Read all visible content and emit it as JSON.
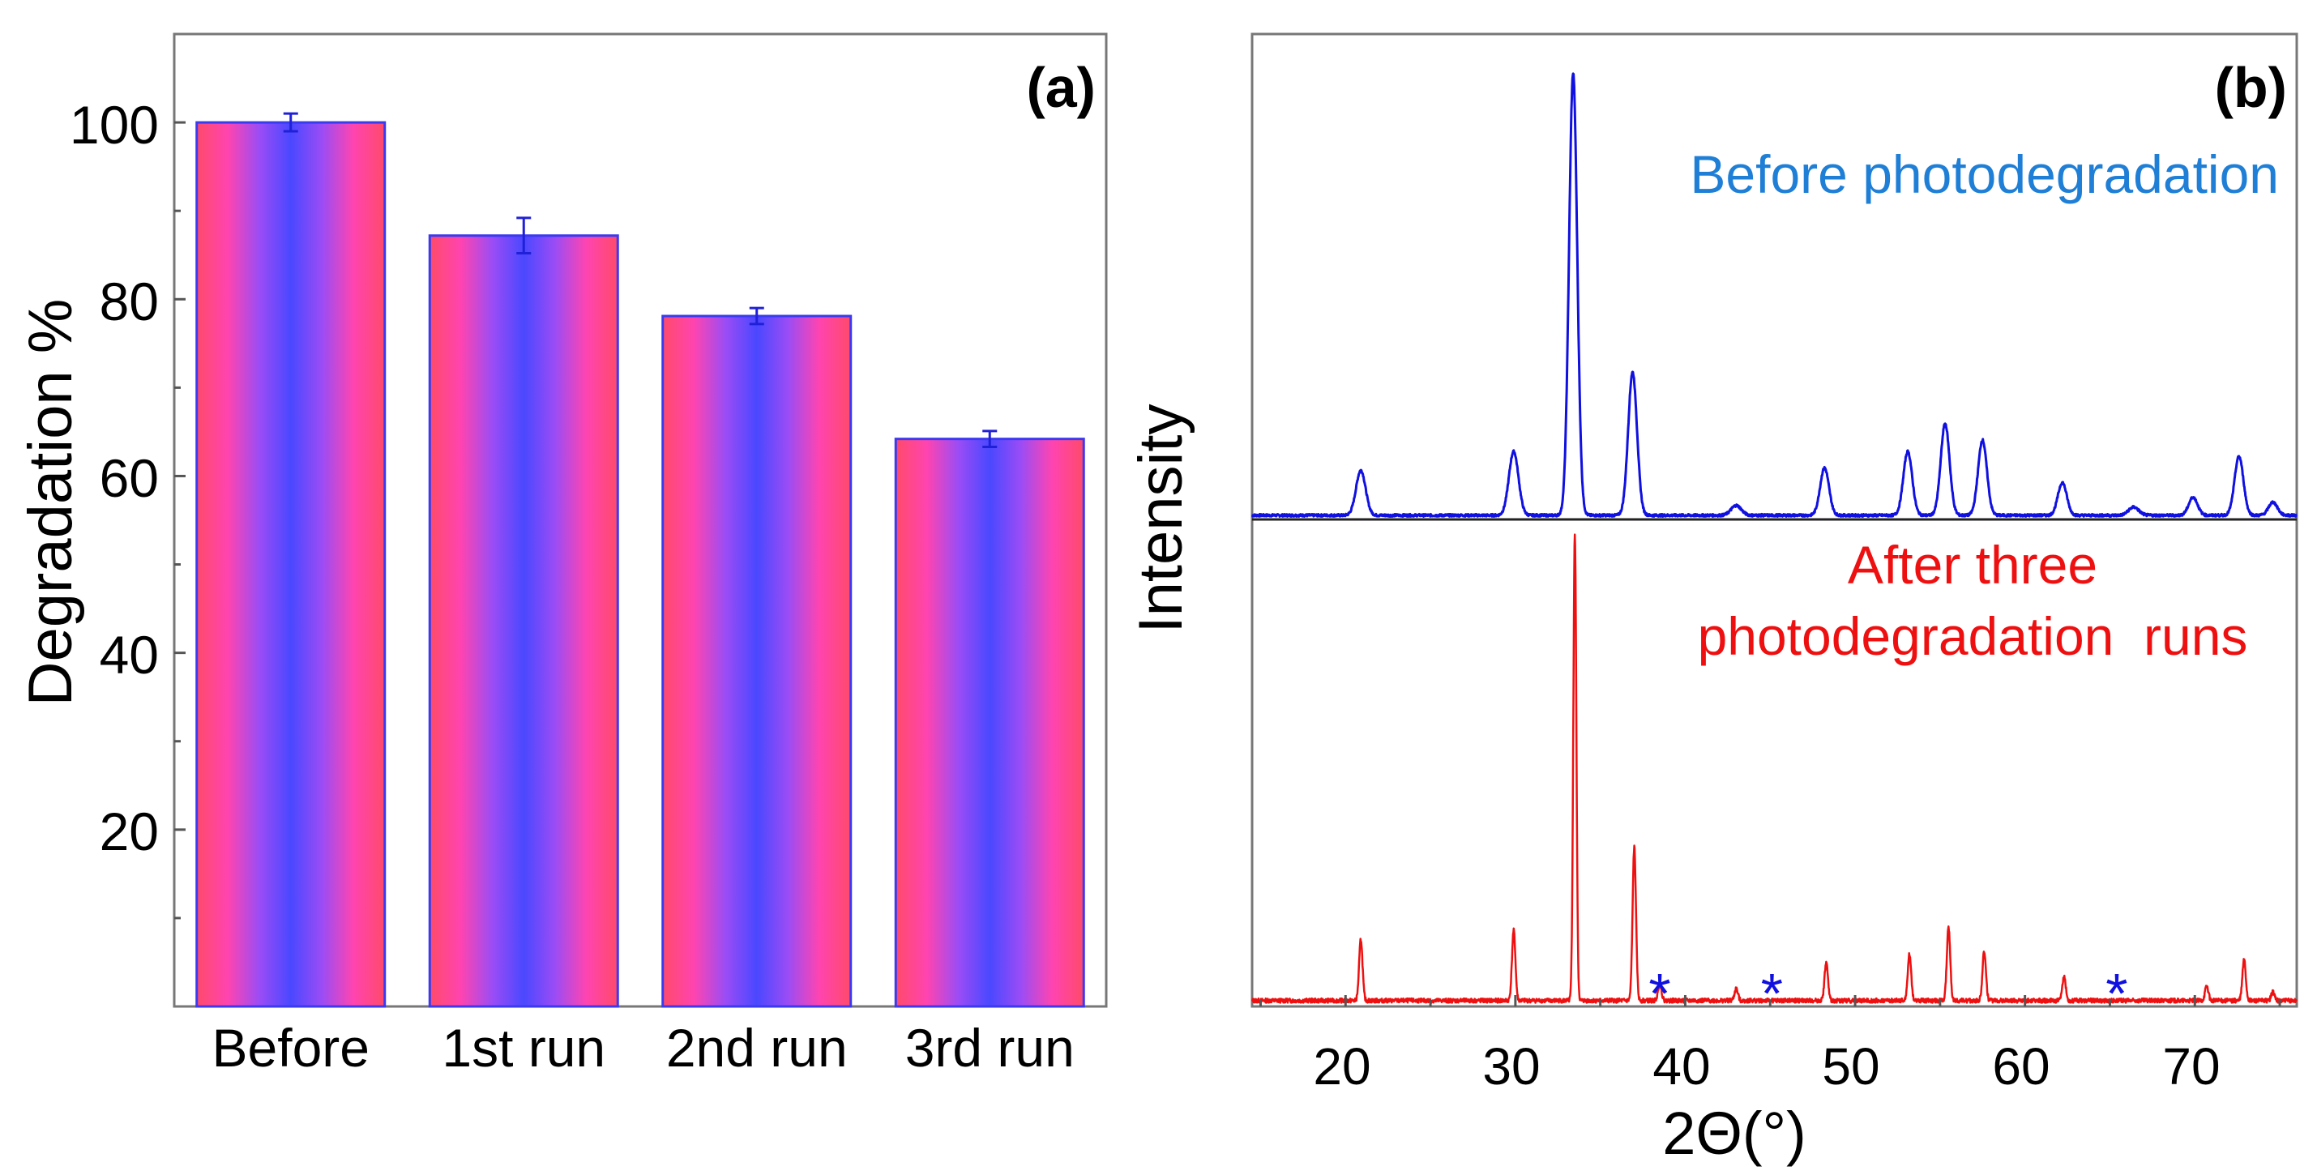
{
  "panel_a": {
    "label": "(a)",
    "ylabel": "Degradation %",
    "y_tick_labels": [
      "20",
      "40",
      "60",
      "80",
      "100"
    ]
  },
  "panel_b": {
    "label": "(b)",
    "ylabel": "Intensity",
    "xlabel": "2Θ(°)",
    "x_tick_labels": [
      "20",
      "30",
      "40",
      "50",
      "60",
      "70"
    ],
    "top_annotation": "Before photodegradation",
    "bottom_annotation_line1": "After three",
    "bottom_annotation_line2": "photodegradation  runs",
    "marker_symbol": "*"
  },
  "colors": {
    "bar_gradient": [
      "#ff4a6a",
      "#ff44b0",
      "#9b4cf5",
      "#4a48ff",
      "#9b4cf5",
      "#ff44b0",
      "#ff4a6a"
    ],
    "bar_edge": "#3a3af0",
    "error_bar": "#2020d8",
    "before_trace": "#1010e0",
    "after_trace": "#ee1010",
    "before_annotation": "#1f7fd6",
    "after_annotation": "#ee1010",
    "marker": "#1010e0"
  },
  "chart_data": [
    {
      "type": "bar",
      "panel": "a",
      "categories": [
        "Before",
        "1st run",
        "2nd run",
        "3rd run"
      ],
      "values": [
        100,
        87.2,
        78.1,
        64.2
      ],
      "errors": [
        1.0,
        2.0,
        0.9,
        0.9
      ],
      "ylabel": "Degradation %",
      "ylim": [
        0,
        110
      ],
      "yticks": [
        20,
        40,
        60,
        80,
        100
      ],
      "grid": false,
      "legend": "none"
    },
    {
      "type": "line",
      "panel": "b",
      "xlabel": "2Θ(°)",
      "ylabel": "Intensity",
      "xlim": [
        14.5,
        76
      ],
      "xticks": [
        20,
        30,
        40,
        50,
        60,
        70
      ],
      "series": [
        {
          "name": "Before photodegradation",
          "baseline": 0.05,
          "peaks": [
            {
              "x": 20.9,
              "h": 0.55,
              "w": 0.28
            },
            {
              "x": 29.9,
              "h": 0.78,
              "w": 0.28
            },
            {
              "x": 33.4,
              "h": 5.4,
              "w": 0.24
            },
            {
              "x": 36.9,
              "h": 1.75,
              "w": 0.26
            },
            {
              "x": 43.0,
              "h": 0.12,
              "w": 0.3
            },
            {
              "x": 48.2,
              "h": 0.58,
              "w": 0.26
            },
            {
              "x": 53.1,
              "h": 0.78,
              "w": 0.26
            },
            {
              "x": 55.3,
              "h": 1.12,
              "w": 0.26
            },
            {
              "x": 57.5,
              "h": 0.92,
              "w": 0.26
            },
            {
              "x": 62.2,
              "h": 0.4,
              "w": 0.26
            },
            {
              "x": 66.4,
              "h": 0.1,
              "w": 0.3
            },
            {
              "x": 69.9,
              "h": 0.22,
              "w": 0.26
            },
            {
              "x": 72.6,
              "h": 0.72,
              "w": 0.26
            },
            {
              "x": 74.6,
              "h": 0.16,
              "w": 0.26
            }
          ]
        },
        {
          "name": "After three photodegradation runs",
          "baseline": 0.04,
          "peaks": [
            {
              "x": 20.9,
              "h": 0.42,
              "w": 0.1
            },
            {
              "x": 29.9,
              "h": 0.48,
              "w": 0.1
            },
            {
              "x": 33.5,
              "h": 3.2,
              "w": 0.09
            },
            {
              "x": 37.0,
              "h": 1.05,
              "w": 0.1
            },
            {
              "x": 38.5,
              "h": 0.12,
              "w": 0.1
            },
            {
              "x": 43.0,
              "h": 0.08,
              "w": 0.1
            },
            {
              "x": 48.3,
              "h": 0.26,
              "w": 0.1
            },
            {
              "x": 53.2,
              "h": 0.32,
              "w": 0.1
            },
            {
              "x": 55.5,
              "h": 0.5,
              "w": 0.1
            },
            {
              "x": 57.6,
              "h": 0.34,
              "w": 0.1
            },
            {
              "x": 62.3,
              "h": 0.16,
              "w": 0.1
            },
            {
              "x": 70.7,
              "h": 0.1,
              "w": 0.1
            },
            {
              "x": 72.9,
              "h": 0.28,
              "w": 0.1
            },
            {
              "x": 74.6,
              "h": 0.06,
              "w": 0.1
            }
          ]
        }
      ],
      "impurity_markers_x": [
        38.5,
        45.1,
        65.4
      ]
    }
  ]
}
